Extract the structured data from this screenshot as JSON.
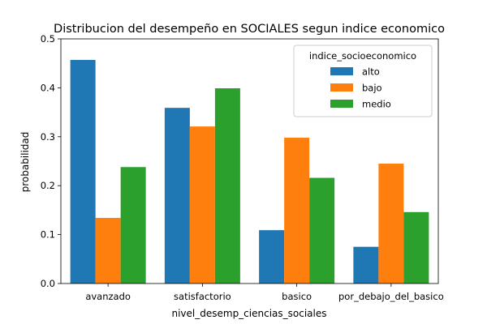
{
  "chart_data": {
    "type": "bar",
    "title": "Distribucion del desempeño en SOCIALES segun indice economico",
    "xlabel": "nivel_desemp_ciencias_sociales",
    "ylabel": "probabilidad",
    "categories": [
      "avanzado",
      "satisfactorio",
      "basico",
      "por_debajo_del_basico"
    ],
    "ylim": [
      0,
      0.5
    ],
    "yticks": [
      "0.0",
      "0.1",
      "0.2",
      "0.3",
      "0.4",
      "0.5"
    ],
    "legend": {
      "title": "indice_socioeconomico",
      "placement": "top-right"
    },
    "series": [
      {
        "name": "alto",
        "color": "#1f77b4",
        "values": [
          0.457,
          0.359,
          0.109,
          0.075
        ]
      },
      {
        "name": "bajo",
        "color": "#ff7f0e",
        "values": [
          0.134,
          0.321,
          0.298,
          0.245
        ]
      },
      {
        "name": "medio",
        "color": "#2ca02c",
        "values": [
          0.238,
          0.399,
          0.216,
          0.146
        ]
      }
    ],
    "grid": false
  }
}
